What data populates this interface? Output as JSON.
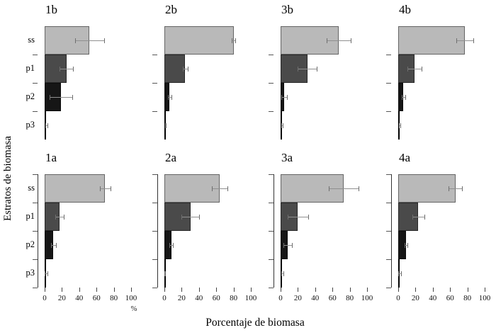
{
  "figure": {
    "ylabel": "Estratos de biomasa",
    "xlabel": "Porcentaje de biomasa",
    "unit_label": "%"
  },
  "chart_data": {
    "type": "bar",
    "orientation": "horizontal",
    "title": "",
    "xlabel": "Porcentaje de biomasa",
    "ylabel": "Estratos de biomasa",
    "unit_label": "%",
    "categories": [
      "ss",
      "p1",
      "p2",
      "p3"
    ],
    "bar_colors": {
      "ss": "#b9b9b9",
      "p1": "#4a4a4a",
      "p2": "#161616",
      "p3": "#000000"
    },
    "x_ticks": [
      0,
      20,
      40,
      60,
      80,
      100
    ],
    "xlim": [
      0,
      100
    ],
    "grid": false,
    "error_bars": "symmetric, line with end caps",
    "layout": "2 rows x 4 columns; x tick labels on bottom row only; category labels on left column only",
    "panels": [
      {
        "label": "1b",
        "row": 0,
        "col": 0,
        "values": [
          52,
          25,
          19,
          2
        ],
        "sd": [
          17,
          8,
          13,
          1
        ]
      },
      {
        "label": "2b",
        "row": 0,
        "col": 1,
        "values": [
          80,
          24,
          6,
          1
        ],
        "sd": [
          2,
          3,
          2,
          0.5
        ]
      },
      {
        "label": "3b",
        "row": 0,
        "col": 2,
        "values": [
          67,
          31,
          4,
          1.5
        ],
        "sd": [
          14,
          11,
          3,
          1
        ]
      },
      {
        "label": "4b",
        "row": 0,
        "col": 3,
        "values": [
          77,
          19,
          6,
          1.5
        ],
        "sd": [
          10,
          8,
          2,
          1
        ]
      },
      {
        "label": "1a",
        "row": 1,
        "col": 0,
        "values": [
          70,
          17,
          10,
          1.5
        ],
        "sd": [
          6,
          5,
          3,
          1.5
        ]
      },
      {
        "label": "2a",
        "row": 1,
        "col": 1,
        "values": [
          64,
          30,
          8,
          0.7
        ],
        "sd": [
          9,
          10,
          2,
          0.5
        ]
      },
      {
        "label": "3a",
        "row": 1,
        "col": 2,
        "values": [
          73,
          20,
          8,
          2
        ],
        "sd": [
          17,
          12,
          5,
          1.5
        ]
      },
      {
        "label": "4a",
        "row": 1,
        "col": 3,
        "values": [
          66,
          23,
          9,
          1.5
        ],
        "sd": [
          8,
          7,
          2,
          1.5
        ]
      }
    ]
  }
}
